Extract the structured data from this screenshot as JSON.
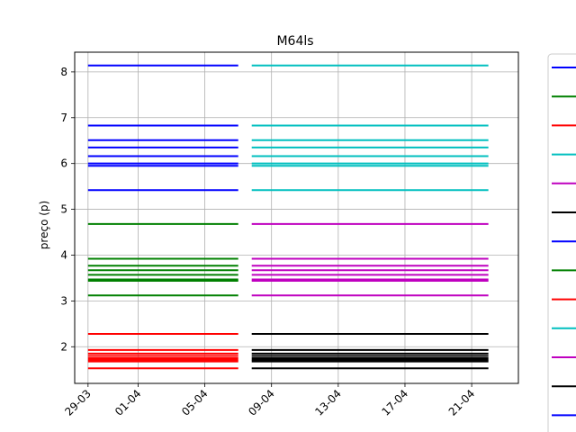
{
  "chart_data": {
    "type": "line",
    "title": "M64ls",
    "xlabel": "",
    "ylabel": "preço (p)",
    "ylim": [
      1.2,
      8.43
    ],
    "xlim_days": [
      -0.8,
      25.8
    ],
    "grid": true,
    "legend_placement": "right, outside plot (clipped)",
    "x_ticks": [
      {
        "label": "29-03",
        "day": 0
      },
      {
        "label": "01-04",
        "day": 3
      },
      {
        "label": "05-04",
        "day": 7
      },
      {
        "label": "09-04",
        "day": 11
      },
      {
        "label": "13-04",
        "day": 15
      },
      {
        "label": "17-04",
        "day": 19
      },
      {
        "label": "21-04",
        "day": 23
      }
    ],
    "y_ticks": [
      2,
      3,
      4,
      5,
      6,
      7,
      8
    ],
    "colors": {
      "blue": "#0000ff",
      "green": "#008000",
      "red": "#ff0000",
      "cyan": "#00bfbf",
      "magenta": "#bf00bf",
      "black": "#000000"
    },
    "segments": [
      {
        "x_start": "29-03",
        "x_end": "09-04",
        "color": "blue",
        "values": [
          8.14,
          6.83,
          6.51,
          6.35,
          6.16,
          6.0,
          5.95,
          5.42
        ]
      },
      {
        "x_start": "29-03",
        "x_end": "09-04",
        "color": "green",
        "values": [
          4.68,
          3.92,
          3.77,
          3.67,
          3.57,
          3.47,
          3.44,
          3.12
        ]
      },
      {
        "x_start": "29-03",
        "x_end": "09-04",
        "color": "red",
        "values": [
          2.28,
          1.93,
          1.85,
          1.8,
          1.75,
          1.71,
          1.68,
          1.53
        ]
      },
      {
        "x_start": "09-04",
        "x_end": "22-04",
        "color": "cyan",
        "values": [
          8.14,
          6.83,
          6.51,
          6.35,
          6.16,
          6.0,
          5.95,
          5.42
        ]
      },
      {
        "x_start": "09-04",
        "x_end": "22-04",
        "color": "magenta",
        "values": [
          4.68,
          3.92,
          3.77,
          3.67,
          3.57,
          3.47,
          3.44,
          3.12
        ]
      },
      {
        "x_start": "09-04",
        "x_end": "22-04",
        "color": "black",
        "values": [
          2.28,
          1.93,
          1.85,
          1.8,
          1.75,
          1.71,
          1.68,
          1.53
        ]
      }
    ],
    "legend_entries": [
      {
        "color": "blue"
      },
      {
        "color": "green"
      },
      {
        "color": "red"
      },
      {
        "color": "cyan"
      },
      {
        "color": "magenta"
      },
      {
        "color": "black"
      },
      {
        "color": "blue"
      },
      {
        "color": "green"
      },
      {
        "color": "red"
      },
      {
        "color": "cyan"
      },
      {
        "color": "magenta"
      },
      {
        "color": "black"
      },
      {
        "color": "blue"
      }
    ]
  }
}
